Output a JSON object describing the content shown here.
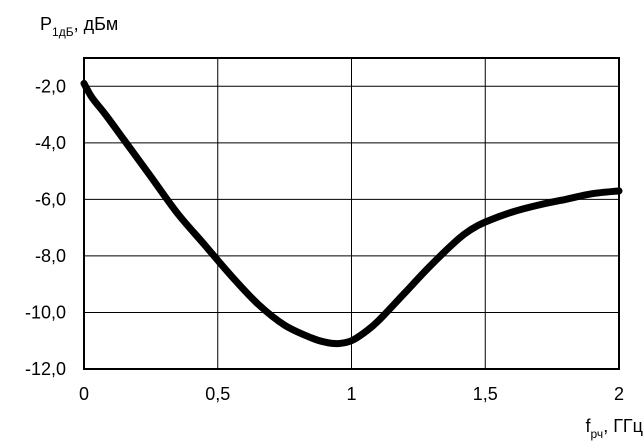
{
  "chart_data": {
    "type": "line",
    "title": "",
    "ylabel": {
      "main": "P",
      "sub": "1дБ",
      "rest": ", дБм"
    },
    "xlabel": {
      "main": "f",
      "sub": "рч",
      "rest": ", ГГц"
    },
    "xlim": [
      0,
      2
    ],
    "ylim": [
      -12,
      -1
    ],
    "x_ticks": [
      {
        "value": 0,
        "label": "0"
      },
      {
        "value": 0.5,
        "label": "0,5"
      },
      {
        "value": 1,
        "label": "1"
      },
      {
        "value": 1.5,
        "label": "1,5"
      },
      {
        "value": 2,
        "label": "2"
      }
    ],
    "y_ticks": [
      {
        "value": -2,
        "label": "-2,0"
      },
      {
        "value": -4,
        "label": "-4,0"
      },
      {
        "value": -6,
        "label": "-6,0"
      },
      {
        "value": -8,
        "label": "-8,0"
      },
      {
        "value": -10,
        "label": "-10,0"
      },
      {
        "value": -12,
        "label": "-12,0"
      }
    ],
    "grid": true,
    "series": [
      {
        "color": "#000000",
        "x": [
          0.0,
          0.03,
          0.08,
          0.15,
          0.25,
          0.35,
          0.45,
          0.55,
          0.65,
          0.75,
          0.85,
          0.9,
          0.95,
          1.0,
          1.05,
          1.1,
          1.2,
          1.3,
          1.4,
          1.45,
          1.5,
          1.6,
          1.7,
          1.8,
          1.9,
          2.0
        ],
        "y": [
          -1.9,
          -2.4,
          -3.0,
          -3.9,
          -5.2,
          -6.5,
          -7.6,
          -8.7,
          -9.7,
          -10.45,
          -10.9,
          -11.05,
          -11.1,
          -11.0,
          -10.7,
          -10.3,
          -9.3,
          -8.3,
          -7.4,
          -7.05,
          -6.8,
          -6.45,
          -6.2,
          -6.0,
          -5.8,
          -5.7
        ]
      }
    ]
  }
}
